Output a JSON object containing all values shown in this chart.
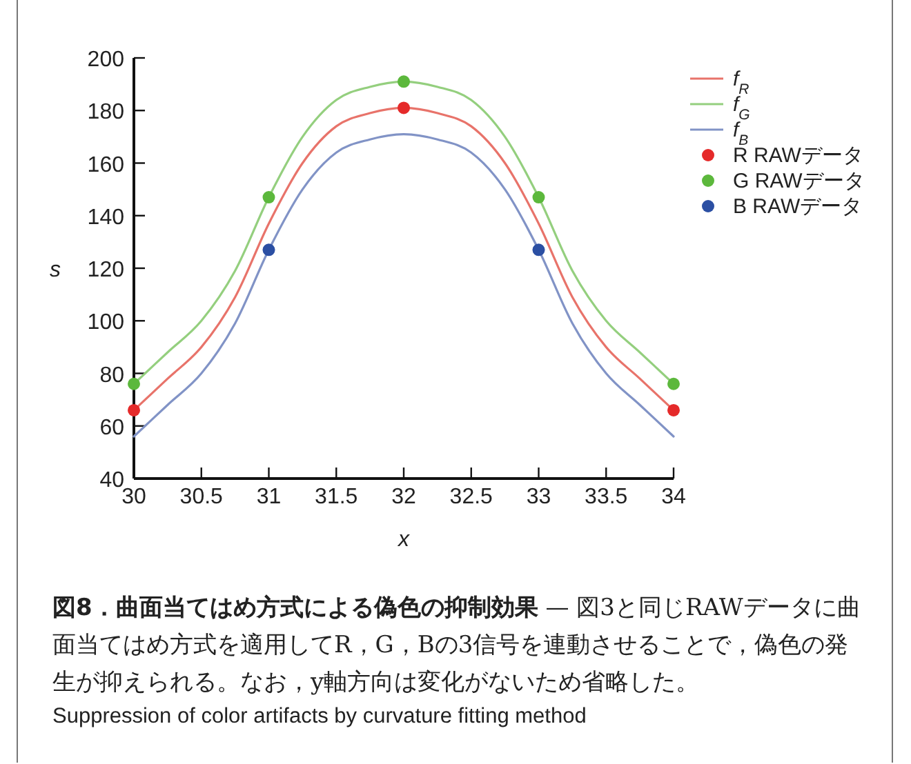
{
  "chart_data": {
    "type": "line",
    "title": "図8．曲面当てはめ方式による偽色の抑制効果",
    "annotations": [
      "— 図3と同じRAWデータに曲面当てはめ方式を適用してR，G，Bの3信号を連動させることで，偽色の発生が抑えられる。なお，y軸方向は変化がないため省略した。",
      "Suppression of color artifacts by curvature fitting method"
    ],
    "xlabel": "x",
    "ylabel": "s",
    "xlim": [
      30,
      34
    ],
    "ylim": [
      40,
      200
    ],
    "xticks": [
      30,
      30.5,
      31,
      31.5,
      32,
      32.5,
      33,
      33.5,
      34
    ],
    "yticks": [
      40,
      60,
      80,
      100,
      120,
      140,
      160,
      180,
      200
    ],
    "grid": false,
    "legend": "top right",
    "line_style": "solid",
    "series": [
      {
        "name": "*f*$_{R}$",
        "type": "line",
        "color": "#e8736a",
        "x": [
          30,
          30.25,
          30.5,
          30.75,
          31,
          31.25,
          31.5,
          31.75,
          32,
          32.25,
          32.5,
          32.75,
          33,
          33.25,
          33.5,
          33.75,
          34
        ],
        "values": [
          66,
          78,
          90,
          109,
          137,
          160,
          174,
          179,
          181,
          179,
          174,
          160,
          137,
          109,
          90,
          78,
          66
        ]
      },
      {
        "name": "*f*$_{G}$",
        "type": "line",
        "color": "#94cf7e",
        "x": [
          30,
          30.25,
          30.5,
          30.75,
          31,
          31.25,
          31.5,
          31.75,
          32,
          32.25,
          32.5,
          32.75,
          33,
          33.25,
          33.5,
          33.75,
          34
        ],
        "values": [
          76,
          88,
          100,
          119,
          147,
          170,
          184,
          189,
          191,
          189,
          184,
          170,
          147,
          119,
          100,
          88,
          76
        ]
      },
      {
        "name": "*f*$_{B}$",
        "type": "line",
        "color": "#8193c6",
        "x": [
          30,
          30.25,
          30.5,
          30.75,
          31,
          31.25,
          31.5,
          31.75,
          32,
          32.25,
          32.5,
          32.75,
          33,
          33.25,
          33.5,
          33.75,
          34
        ],
        "values": [
          56,
          68,
          80,
          99,
          127,
          150,
          164,
          169,
          171,
          169,
          164,
          150,
          127,
          99,
          80,
          68,
          56
        ]
      },
      {
        "name": "R RAWデータ",
        "type": "scatter",
        "marker": "circle",
        "color": "#e52a2a",
        "x": [
          30,
          32,
          34
        ],
        "values": [
          66,
          181,
          66
        ]
      },
      {
        "name": "G RAWデータ",
        "type": "scatter",
        "marker": "circle",
        "color": "#5cb83c",
        "x": [
          30,
          31,
          32,
          33,
          34
        ],
        "values": [
          76,
          147,
          191,
          147,
          76
        ]
      },
      {
        "name": "B RAWデータ",
        "type": "scatter",
        "marker": "circle",
        "color": "#2b4fa3",
        "x": [
          31,
          33
        ],
        "values": [
          127,
          127
        ]
      }
    ]
  }
}
